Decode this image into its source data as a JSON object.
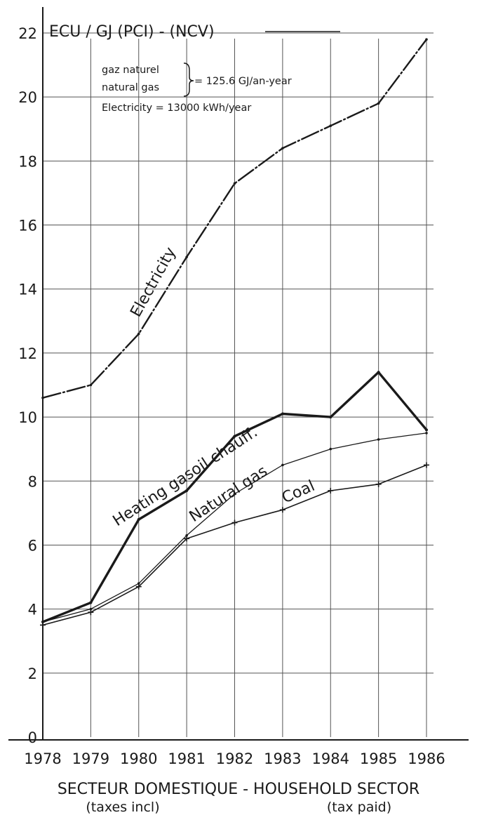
{
  "chart_data": {
    "type": "line",
    "unit_label": "ECU / GJ (PCI) - (NCV)",
    "note": {
      "gas_line1": "gaz naturel",
      "gas_line2": "natural gas",
      "gas_value": "= 125.6 GJ/an-year",
      "electricity": "Electricity = 13000 kWh/year"
    },
    "xlabel": "SECTEUR DOMESTIQUE - HOUSEHOLD SECTOR",
    "xlabel_sub_left": "(taxes incl)",
    "xlabel_sub_right": "(tax paid)",
    "x": [
      1978,
      1979,
      1980,
      1981,
      1982,
      1983,
      1984,
      1985,
      1986
    ],
    "x_tick_labels": [
      "1978",
      "1979",
      "1980",
      "1981",
      "1982",
      "1983",
      "1984",
      "1985",
      "1986"
    ],
    "ylim": [
      0,
      22
    ],
    "y_ticks": [
      0,
      2,
      4,
      6,
      8,
      10,
      12,
      14,
      16,
      18,
      20,
      22
    ],
    "y_tick_labels": [
      "0",
      "2",
      "4",
      "6",
      "8",
      "10",
      "12",
      "14",
      "16",
      "18",
      "20",
      "22"
    ],
    "grid": true,
    "series": [
      {
        "name": "Electricity",
        "values": [
          10.6,
          11.0,
          12.6,
          15.0,
          17.3,
          18.4,
          19.1,
          19.8,
          21.8
        ],
        "style": "dash-dot",
        "color": "#1a1a1a"
      },
      {
        "name": "Heating gasoil chauff.",
        "values": [
          3.6,
          4.2,
          6.8,
          7.7,
          9.4,
          10.1,
          10.0,
          11.4,
          9.6
        ],
        "style": "thick",
        "color": "#1a1a1a"
      },
      {
        "name": "Natural gas",
        "values": [
          3.6,
          4.0,
          4.8,
          6.3,
          7.6,
          8.5,
          9.0,
          9.3,
          9.5
        ],
        "style": "thin",
        "color": "#1a1a1a"
      },
      {
        "name": "Coal",
        "values": [
          3.5,
          3.9,
          4.7,
          6.2,
          6.7,
          7.1,
          7.7,
          7.9,
          8.5
        ],
        "style": "crosses",
        "color": "#1a1a1a"
      }
    ]
  }
}
